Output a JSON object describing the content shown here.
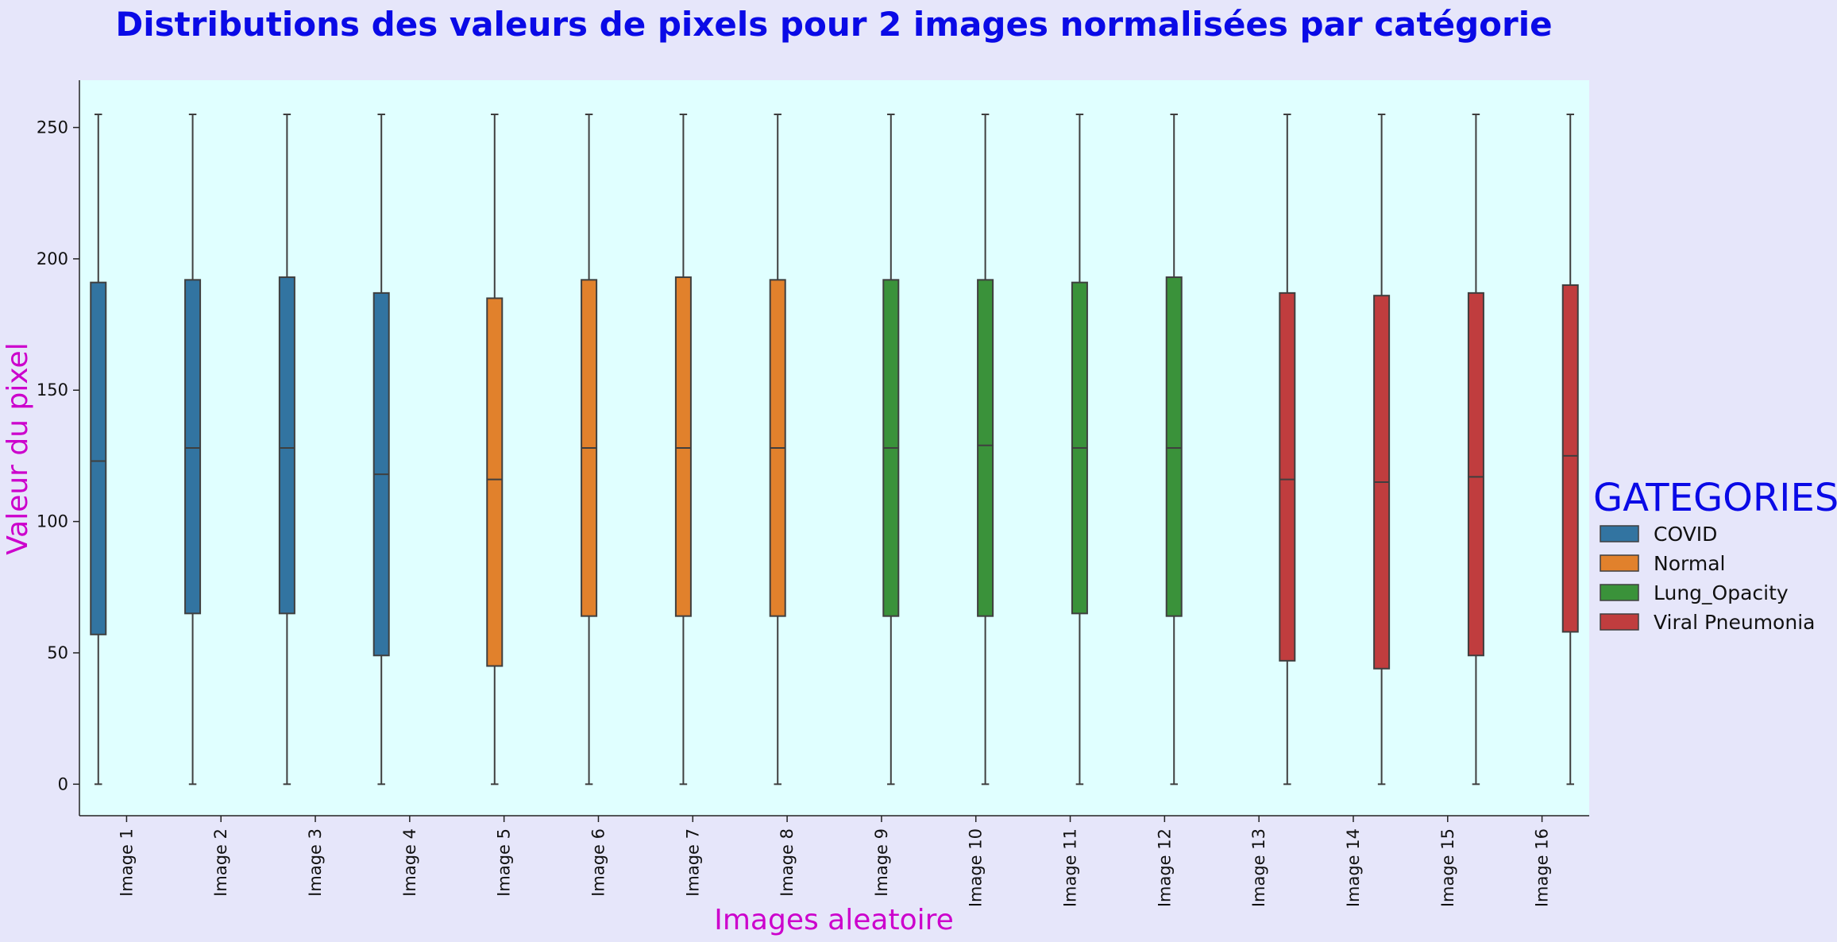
{
  "chart_data": {
    "type": "boxplot",
    "title": "Distributions des valeurs de pixels pour 2 images normalisées par catégorie",
    "xlabel": "Images aleatoire",
    "ylabel": "Valeur du pixel",
    "ylim": [
      -12,
      268
    ],
    "yticks": [
      0,
      50,
      100,
      150,
      200,
      250
    ],
    "grid": false,
    "legend": {
      "title": "GATEGORIES",
      "placement": "right-outside",
      "entries": [
        {
          "name": "COVID",
          "color": "#3274a1"
        },
        {
          "name": "Normal",
          "color": "#e1812c"
        },
        {
          "name": "Lung_Opacity",
          "color": "#3a923a"
        },
        {
          "name": "Viral Pneumonia",
          "color": "#c03d3e"
        }
      ]
    },
    "categories": [
      "Image 1",
      "Image 2",
      "Image 3",
      "Image 4",
      "Image 5",
      "Image 6",
      "Image 7",
      "Image 8",
      "Image 9",
      "Image 10",
      "Image 11",
      "Image 12",
      "Image 13",
      "Image 14",
      "Image 15",
      "Image 16"
    ],
    "boxes": [
      {
        "category": "Image 1",
        "series": "COVID",
        "min": 0,
        "q1": 57,
        "median": 123,
        "q3": 191,
        "max": 255
      },
      {
        "category": "Image 2",
        "series": "COVID",
        "min": 0,
        "q1": 65,
        "median": 128,
        "q3": 192,
        "max": 255
      },
      {
        "category": "Image 3",
        "series": "COVID",
        "min": 0,
        "q1": 65,
        "median": 128,
        "q3": 193,
        "max": 255
      },
      {
        "category": "Image 4",
        "series": "COVID",
        "min": 0,
        "q1": 49,
        "median": 118,
        "q3": 187,
        "max": 255
      },
      {
        "category": "Image 5",
        "series": "Normal",
        "min": 0,
        "q1": 45,
        "median": 116,
        "q3": 185,
        "max": 255
      },
      {
        "category": "Image 6",
        "series": "Normal",
        "min": 0,
        "q1": 64,
        "median": 128,
        "q3": 192,
        "max": 255
      },
      {
        "category": "Image 7",
        "series": "Normal",
        "min": 0,
        "q1": 64,
        "median": 128,
        "q3": 193,
        "max": 255
      },
      {
        "category": "Image 8",
        "series": "Normal",
        "min": 0,
        "q1": 64,
        "median": 128,
        "q3": 192,
        "max": 255
      },
      {
        "category": "Image 9",
        "series": "Lung_Opacity",
        "min": 0,
        "q1": 64,
        "median": 128,
        "q3": 192,
        "max": 255
      },
      {
        "category": "Image 10",
        "series": "Lung_Opacity",
        "min": 0,
        "q1": 64,
        "median": 129,
        "q3": 192,
        "max": 255
      },
      {
        "category": "Image 11",
        "series": "Lung_Opacity",
        "min": 0,
        "q1": 65,
        "median": 128,
        "q3": 191,
        "max": 255
      },
      {
        "category": "Image 12",
        "series": "Lung_Opacity",
        "min": 0,
        "q1": 64,
        "median": 128,
        "q3": 193,
        "max": 255
      },
      {
        "category": "Image 13",
        "series": "Viral Pneumonia",
        "min": 0,
        "q1": 47,
        "median": 116,
        "q3": 187,
        "max": 255
      },
      {
        "category": "Image 14",
        "series": "Viral Pneumonia",
        "min": 0,
        "q1": 44,
        "median": 115,
        "q3": 186,
        "max": 255
      },
      {
        "category": "Image 15",
        "series": "Viral Pneumonia",
        "min": 0,
        "q1": 49,
        "median": 117,
        "q3": 187,
        "max": 255
      },
      {
        "category": "Image 16",
        "series": "Viral Pneumonia",
        "min": 0,
        "q1": 58,
        "median": 125,
        "q3": 190,
        "max": 255
      }
    ]
  }
}
